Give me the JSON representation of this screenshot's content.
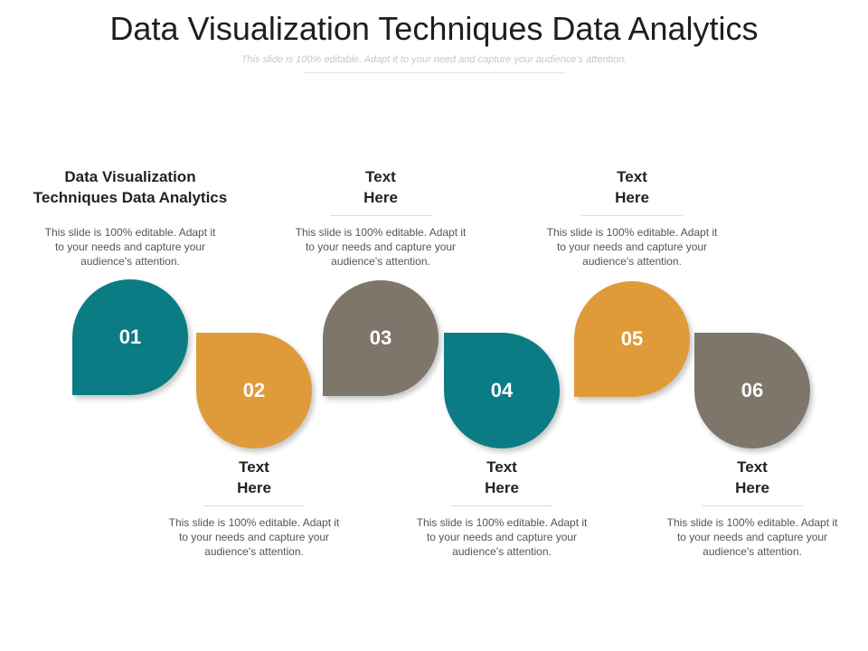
{
  "header": {
    "title": "Data Visualization Techniques Data Analytics",
    "subtitle": "This slide is 100% editable. Adapt it to your need and capture your audience's attention."
  },
  "colors": {
    "teal": "#0b7c84",
    "orange": "#df9b3a",
    "taupe": "#7e766a"
  },
  "steps": [
    {
      "number": "01",
      "color": "#0b7c84",
      "heading": "Data Visualization Techniques Data Analytics",
      "body": "This slide is 100% editable. Adapt it to your needs and capture your audience's attention."
    },
    {
      "number": "02",
      "color": "#df9b3a",
      "heading": "Text Here",
      "body": "This slide is 100% editable. Adapt it to your needs and capture your audience's attention."
    },
    {
      "number": "03",
      "color": "#7e766a",
      "heading": "Text Here",
      "body": "This slide is 100% editable. Adapt it to your needs and capture your audience's attention."
    },
    {
      "number": "04",
      "color": "#0b7c84",
      "heading": "Text Here",
      "body": "This slide is 100% editable. Adapt it to your needs and capture your audience's attention."
    },
    {
      "number": "05",
      "color": "#df9b3a",
      "heading": "Text Here",
      "body": "This slide is 100% editable. Adapt it to your needs and capture your audience's attention."
    },
    {
      "number": "06",
      "color": "#7e766a",
      "heading": "Text Here",
      "body": "This slide is 100% editable. Adapt it to your needs and capture your audience's attention."
    }
  ]
}
